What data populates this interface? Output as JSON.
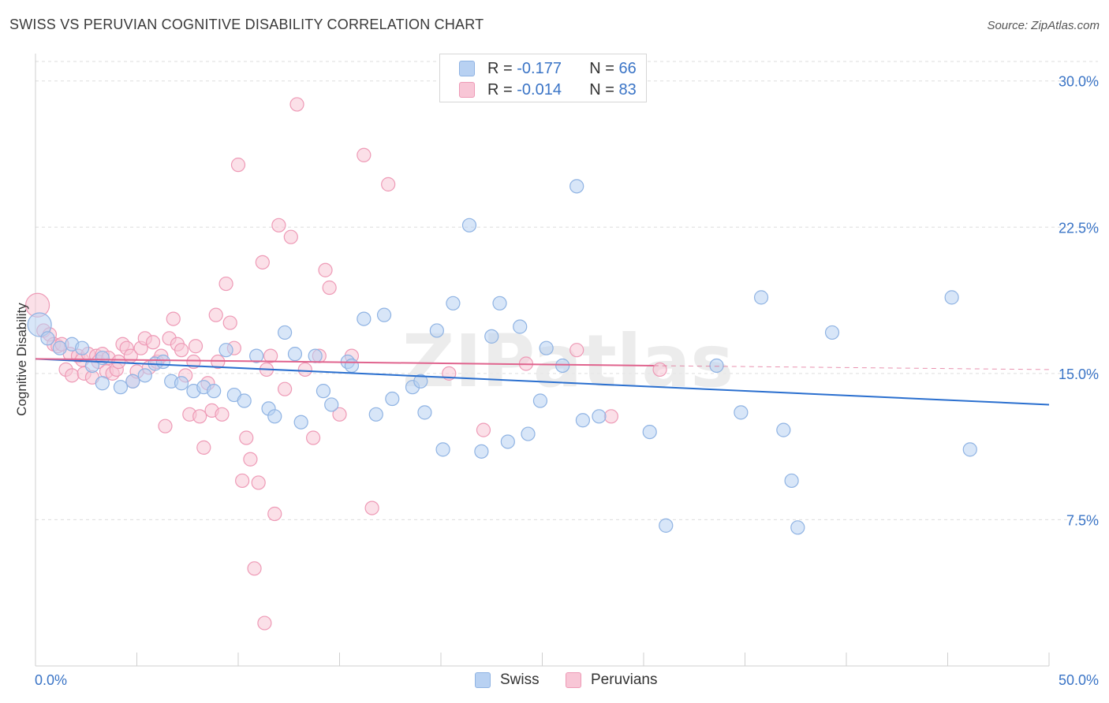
{
  "title": "SWISS VS PERUVIAN COGNITIVE DISABILITY CORRELATION CHART",
  "source": "Source: ZipAtlas.com",
  "legend_top": [
    {
      "r_label": "R =",
      "r_value": "-0.177",
      "n_label": "N =",
      "n_value": "66"
    },
    {
      "r_label": "R =",
      "r_value": "-0.014",
      "n_label": "N =",
      "n_value": "83"
    }
  ],
  "legend_bottom": [
    "Swiss",
    "Peruvians"
  ],
  "colors": {
    "swiss_fill": "#b8d1f2",
    "swiss_stroke": "#8fb3e3",
    "swiss_line": "#2a6fcf",
    "peru_fill": "#f8c6d6",
    "peru_stroke": "#ee9ab6",
    "peru_line": "#e0648e",
    "tick_label": "#3a74c6",
    "grid": "#dddddd"
  },
  "watermark": "ZIPatlas",
  "chart_data": {
    "type": "scatter",
    "title": "SWISS VS PERUVIAN COGNITIVE DISABILITY CORRELATION CHART",
    "xlabel": "",
    "ylabel": "Cognitive Disability",
    "xlim": [
      0,
      50
    ],
    "ylim": [
      0,
      31
    ],
    "x_tick_labels": [
      "0.0%",
      "50.0%"
    ],
    "y_ticks": [
      7.5,
      15.0,
      22.5,
      30.0
    ],
    "y_tick_labels": [
      "7.5%",
      "15.0%",
      "22.5%",
      "30.0%"
    ],
    "grid": true,
    "legend_position": "top-center",
    "series": [
      {
        "name": "Swiss",
        "r": -0.177,
        "n": 66,
        "trend": {
          "x": [
            0,
            50
          ],
          "y": [
            15.75,
            13.4
          ]
        },
        "points": [
          [
            0.2,
            17.5
          ],
          [
            0.6,
            16.8
          ],
          [
            1.2,
            16.3
          ],
          [
            1.8,
            16.5
          ],
          [
            2.3,
            16.3
          ],
          [
            2.8,
            15.4
          ],
          [
            3.3,
            15.8
          ],
          [
            3.3,
            14.5
          ],
          [
            4.2,
            14.3
          ],
          [
            4.8,
            14.6
          ],
          [
            5.4,
            14.9
          ],
          [
            5.9,
            15.5
          ],
          [
            6.3,
            15.6
          ],
          [
            6.7,
            14.6
          ],
          [
            7.2,
            14.5
          ],
          [
            7.8,
            14.1
          ],
          [
            8.3,
            14.3
          ],
          [
            8.8,
            14.1
          ],
          [
            9.4,
            16.2
          ],
          [
            9.8,
            13.9
          ],
          [
            10.3,
            13.6
          ],
          [
            10.9,
            15.9
          ],
          [
            11.5,
            13.2
          ],
          [
            11.8,
            12.8
          ],
          [
            12.3,
            17.1
          ],
          [
            12.8,
            16.0
          ],
          [
            13.1,
            12.5
          ],
          [
            13.8,
            15.9
          ],
          [
            14.2,
            14.1
          ],
          [
            14.6,
            13.4
          ],
          [
            15.4,
            15.6
          ],
          [
            15.6,
            15.4
          ],
          [
            16.2,
            17.8
          ],
          [
            16.8,
            12.9
          ],
          [
            17.2,
            18.0
          ],
          [
            17.6,
            13.7
          ],
          [
            18.6,
            14.3
          ],
          [
            19.0,
            14.6
          ],
          [
            19.2,
            13.0
          ],
          [
            19.8,
            17.2
          ],
          [
            20.1,
            11.1
          ],
          [
            20.6,
            18.6
          ],
          [
            21.4,
            22.6
          ],
          [
            22.0,
            11.0
          ],
          [
            22.5,
            16.9
          ],
          [
            22.9,
            18.6
          ],
          [
            23.3,
            11.5
          ],
          [
            23.9,
            17.4
          ],
          [
            24.3,
            11.9
          ],
          [
            24.9,
            13.6
          ],
          [
            25.2,
            16.3
          ],
          [
            26.0,
            15.4
          ],
          [
            26.7,
            24.6
          ],
          [
            27.0,
            12.6
          ],
          [
            27.8,
            12.8
          ],
          [
            30.3,
            12.0
          ],
          [
            31.1,
            7.2
          ],
          [
            33.6,
            15.4
          ],
          [
            34.8,
            13.0
          ],
          [
            35.8,
            18.9
          ],
          [
            36.9,
            12.1
          ],
          [
            37.3,
            9.5
          ],
          [
            37.6,
            7.1
          ],
          [
            39.3,
            17.1
          ],
          [
            45.2,
            18.9
          ],
          [
            46.1,
            11.1
          ]
        ]
      },
      {
        "name": "Peruvians",
        "r": -0.014,
        "n": 83,
        "trend": {
          "x": [
            0,
            30.5
          ],
          "y": [
            15.75,
            15.4
          ]
        },
        "trend_dashed": {
          "x": [
            30.5,
            50
          ],
          "y": [
            15.4,
            15.2
          ]
        },
        "points": [
          [
            0.1,
            18.5
          ],
          [
            0.4,
            17.2
          ],
          [
            0.7,
            17.0
          ],
          [
            0.9,
            16.5
          ],
          [
            1.1,
            16.4
          ],
          [
            1.3,
            16.5
          ],
          [
            1.5,
            15.2
          ],
          [
            1.7,
            16.0
          ],
          [
            1.8,
            14.9
          ],
          [
            2.1,
            15.9
          ],
          [
            2.3,
            15.7
          ],
          [
            2.4,
            15.0
          ],
          [
            2.6,
            16.0
          ],
          [
            2.8,
            14.8
          ],
          [
            3.0,
            15.9
          ],
          [
            3.1,
            15.6
          ],
          [
            3.3,
            16.0
          ],
          [
            3.5,
            15.1
          ],
          [
            3.6,
            15.8
          ],
          [
            3.8,
            15.0
          ],
          [
            4.0,
            15.2
          ],
          [
            4.1,
            15.6
          ],
          [
            4.3,
            16.5
          ],
          [
            4.5,
            16.3
          ],
          [
            4.7,
            15.9
          ],
          [
            4.8,
            14.6
          ],
          [
            5.0,
            15.1
          ],
          [
            5.2,
            16.3
          ],
          [
            5.4,
            16.8
          ],
          [
            5.6,
            15.3
          ],
          [
            5.8,
            16.6
          ],
          [
            6.0,
            15.6
          ],
          [
            6.2,
            15.9
          ],
          [
            6.4,
            12.3
          ],
          [
            6.6,
            16.8
          ],
          [
            6.8,
            17.8
          ],
          [
            7.0,
            16.5
          ],
          [
            7.2,
            16.2
          ],
          [
            7.4,
            14.9
          ],
          [
            7.6,
            12.9
          ],
          [
            7.8,
            15.6
          ],
          [
            7.9,
            16.4
          ],
          [
            8.1,
            12.8
          ],
          [
            8.3,
            11.2
          ],
          [
            8.5,
            14.5
          ],
          [
            8.7,
            13.1
          ],
          [
            8.9,
            18.0
          ],
          [
            9.0,
            15.6
          ],
          [
            9.2,
            12.9
          ],
          [
            9.4,
            19.6
          ],
          [
            9.6,
            17.6
          ],
          [
            9.8,
            16.3
          ],
          [
            10.0,
            25.7
          ],
          [
            10.2,
            9.5
          ],
          [
            10.4,
            11.7
          ],
          [
            10.6,
            10.6
          ],
          [
            10.8,
            5.0
          ],
          [
            11.0,
            9.4
          ],
          [
            11.2,
            20.7
          ],
          [
            11.3,
            2.2
          ],
          [
            11.4,
            15.2
          ],
          [
            11.6,
            15.9
          ],
          [
            11.8,
            7.8
          ],
          [
            12.0,
            22.6
          ],
          [
            12.3,
            14.2
          ],
          [
            12.6,
            22.0
          ],
          [
            12.9,
            28.8
          ],
          [
            13.3,
            15.2
          ],
          [
            13.7,
            11.7
          ],
          [
            14.0,
            15.9
          ],
          [
            14.3,
            20.3
          ],
          [
            14.5,
            19.4
          ],
          [
            15.0,
            12.9
          ],
          [
            15.6,
            15.9
          ],
          [
            16.2,
            26.2
          ],
          [
            16.6,
            8.1
          ],
          [
            17.4,
            24.7
          ],
          [
            20.4,
            15.0
          ],
          [
            22.1,
            12.1
          ],
          [
            24.2,
            15.5
          ],
          [
            26.7,
            16.2
          ],
          [
            28.4,
            12.8
          ],
          [
            30.8,
            15.2
          ]
        ]
      }
    ]
  }
}
